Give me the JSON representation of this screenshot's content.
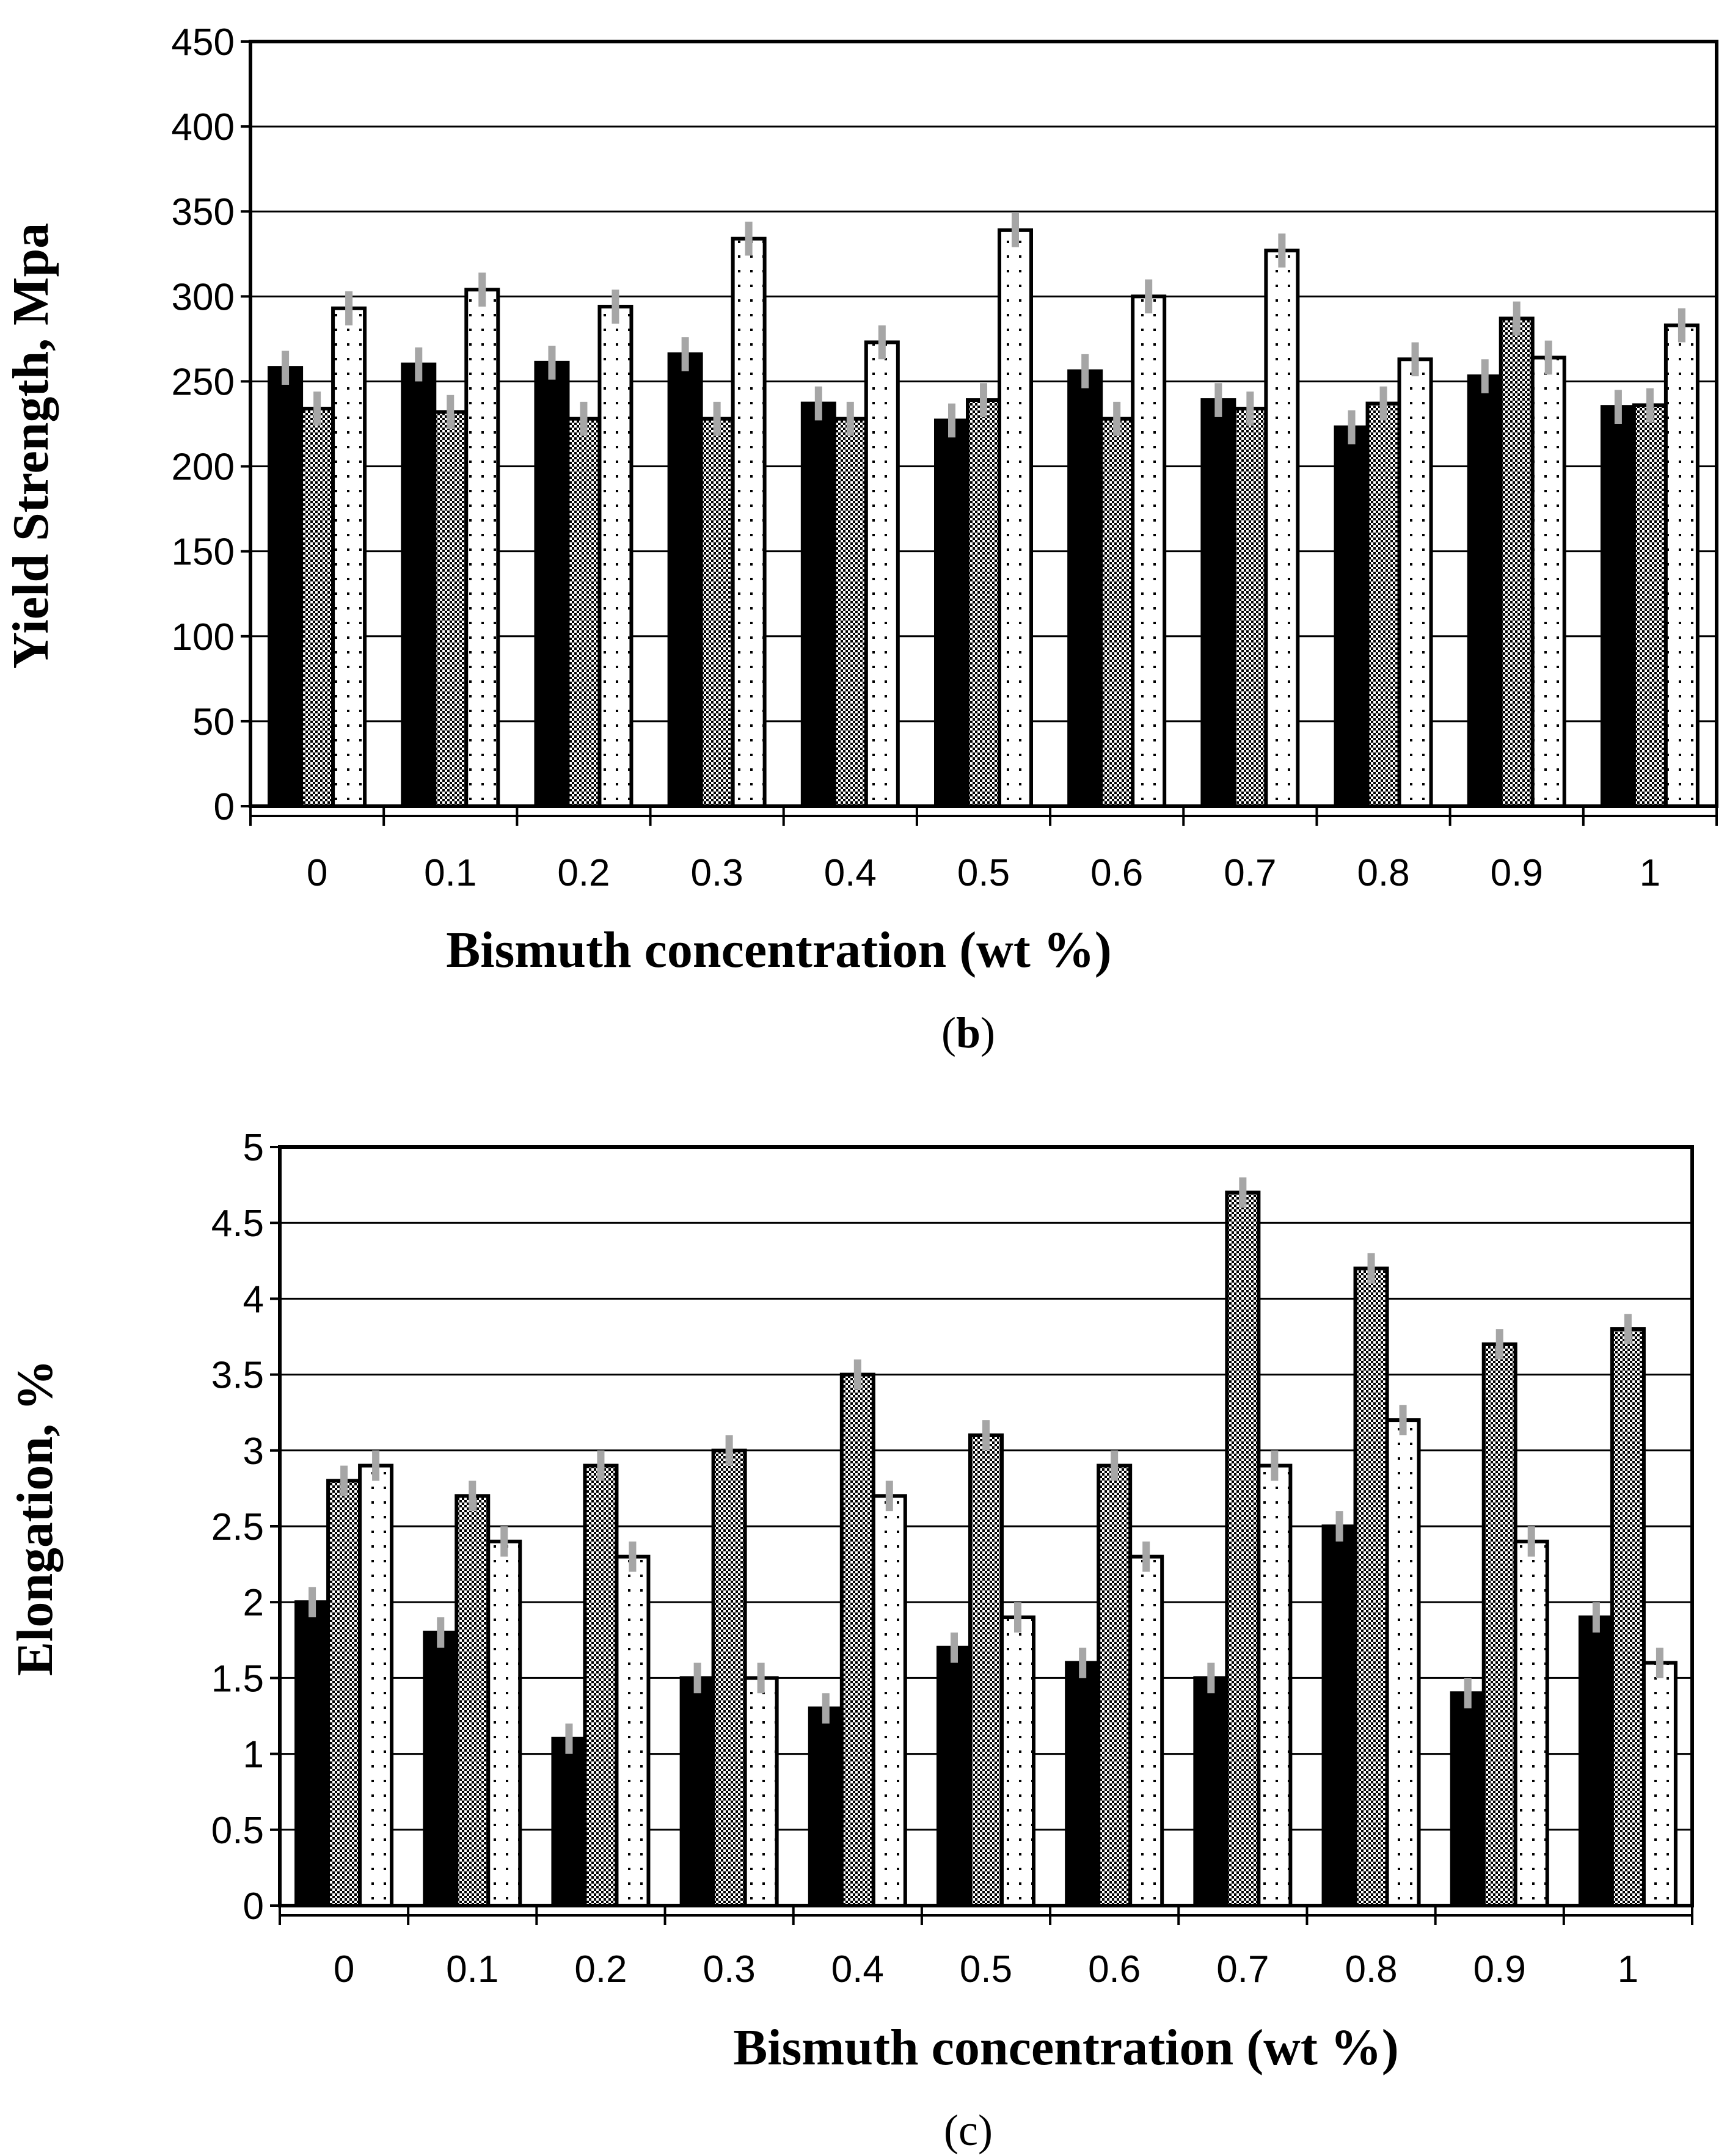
{
  "chart_data": [
    {
      "type": "bar",
      "panel_label": "b",
      "categories": [
        "0",
        "0.1",
        "0.2",
        "0.3",
        "0.4",
        "0.5",
        "0.6",
        "0.7",
        "0.8",
        "0.9",
        "1"
      ],
      "series": [
        {
          "fill": "solid-black",
          "values": [
            258,
            260,
            261,
            266,
            237,
            227,
            256,
            239,
            223,
            253,
            235
          ]
        },
        {
          "fill": "checkered",
          "values": [
            234,
            232,
            228,
            228,
            228,
            239,
            228,
            234,
            237,
            287,
            236
          ]
        },
        {
          "fill": "dotted-white",
          "values": [
            293,
            304,
            294,
            334,
            273,
            339,
            300,
            327,
            263,
            264,
            283
          ]
        }
      ],
      "error_bar": 10,
      "xlabel": "Bismuth concentration (wt %)",
      "ylabel": "Yield Strength, Mpa",
      "ylim": [
        0,
        450
      ],
      "yticks": [
        "0",
        "50",
        "100",
        "150",
        "200",
        "250",
        "300",
        "350",
        "400",
        "450"
      ],
      "grid": true
    },
    {
      "type": "bar",
      "panel_label": "c",
      "categories": [
        "0",
        "0.1",
        "0.2",
        "0.3",
        "0.4",
        "0.5",
        "0.6",
        "0.7",
        "0.8",
        "0.9",
        "1"
      ],
      "series": [
        {
          "fill": "solid-black",
          "values": [
            2.0,
            1.8,
            1.1,
            1.5,
            1.3,
            1.7,
            1.6,
            1.5,
            2.5,
            1.4,
            1.9
          ]
        },
        {
          "fill": "checkered",
          "values": [
            2.8,
            2.7,
            2.9,
            3.0,
            3.5,
            3.1,
            2.9,
            4.7,
            4.2,
            3.7,
            3.8
          ]
        },
        {
          "fill": "dotted-white",
          "values": [
            2.9,
            2.4,
            2.3,
            1.5,
            2.7,
            1.9,
            2.3,
            2.9,
            3.2,
            2.4,
            1.6
          ]
        }
      ],
      "error_bar": 0.1,
      "xlabel": "Bismuth concentration (wt %)",
      "ylabel": "Elongation, %",
      "ylim": [
        0,
        5
      ],
      "yticks": [
        "0",
        "0.5",
        "1",
        "1.5",
        "2",
        "2.5",
        "3",
        "3.5",
        "4",
        "4.5",
        "5"
      ],
      "grid": true
    }
  ]
}
